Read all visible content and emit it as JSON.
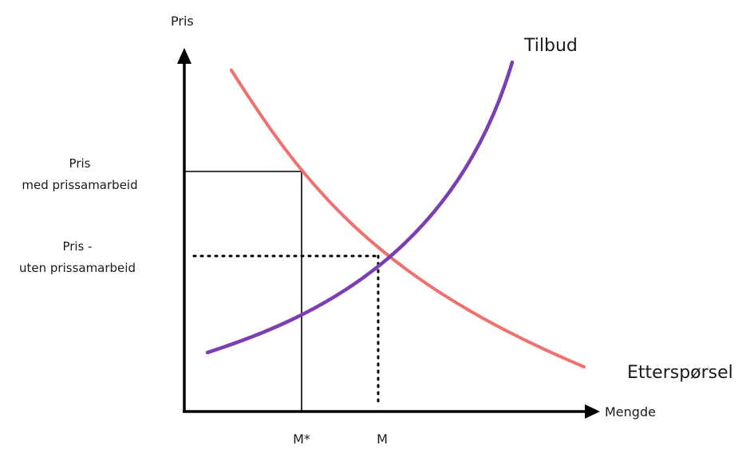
{
  "colors": {
    "supply": "#7b3fb3",
    "demand": "#f0706e",
    "axis": "#000000",
    "guide": "#000000"
  },
  "labels": {
    "y_axis": "Pris",
    "x_axis": "Mengde",
    "supply": "Tilbud",
    "demand": "Etterspørsel",
    "price_with_line1": "Pris",
    "price_with_line2": "med prissamarbeid",
    "price_without_line1": "Pris -",
    "price_without_line2": "uten prissamarbeid",
    "q_cartel": "M*",
    "q_market": "M"
  }
}
